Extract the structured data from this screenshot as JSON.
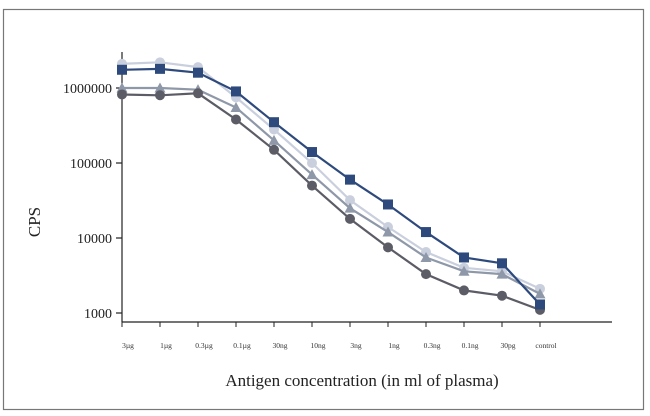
{
  "chart_data": {
    "type": "line",
    "title": "",
    "xlabel": "Antigen concentration (in ml of plasma)",
    "ylabel": "CPS",
    "yscale": "log",
    "ylim": [
      1000,
      3000000
    ],
    "y_ticks": [
      1000,
      10000,
      100000,
      1000000
    ],
    "y_tick_labels": [
      "1000",
      "10000",
      "100000",
      "1000000"
    ],
    "categories": [
      "3µg",
      "1µg",
      "0.3µg",
      "0.1µg",
      "30ng",
      "10ng",
      "3ng",
      "1ng",
      "0.3ng",
      "0.1ng",
      "30pg",
      "control"
    ],
    "grid": false,
    "legend": "none",
    "series": [
      {
        "marker": "square",
        "color": "#2e4a7d",
        "values": [
          1750000,
          1800000,
          1600000,
          900000,
          350000,
          140000,
          60000,
          28000,
          12000,
          5500,
          4600,
          1300
        ]
      },
      {
        "marker": "circle",
        "color": "#c9cfdd",
        "values": [
          2100000,
          2200000,
          1900000,
          750000,
          280000,
          100000,
          32000,
          14000,
          6500,
          4000,
          3600,
          2100
        ]
      },
      {
        "marker": "triangle",
        "color": "#8e98a8",
        "values": [
          1000000,
          1000000,
          950000,
          550000,
          200000,
          70000,
          25000,
          12000,
          5500,
          3600,
          3300,
          1800
        ]
      },
      {
        "marker": "circle",
        "color": "#5c5c66",
        "values": [
          820000,
          800000,
          850000,
          380000,
          150000,
          50000,
          18000,
          7500,
          3300,
          2000,
          1700,
          1100
        ]
      }
    ]
  }
}
